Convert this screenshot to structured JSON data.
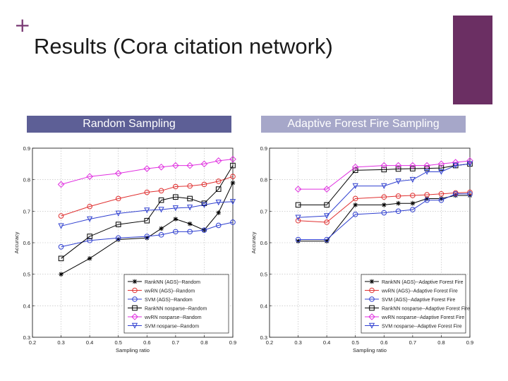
{
  "slide": {
    "plus": "+",
    "title": "Results (Cora citation network)",
    "accent_color": "#6b2f63",
    "left_label": "Random Sampling",
    "right_label": "Adaptive Forest Fire Sampling"
  },
  "chart_data": [
    {
      "type": "line",
      "xlabel": "Sampling ratio",
      "ylabel": "Accuracy",
      "xlim": [
        0.2,
        0.9
      ],
      "ylim": [
        0.3,
        0.9
      ],
      "xticks": [
        "0.2",
        "0.3",
        "0.4",
        "0.5",
        "0.6",
        "0.7",
        "0.8",
        "0.9"
      ],
      "yticks": [
        "0.3",
        "0.4",
        "0.5",
        "0.6",
        "0.7",
        "0.8",
        "0.9"
      ],
      "legend": "bottom-right",
      "x": [
        0.3,
        0.4,
        0.5,
        0.6,
        0.65,
        0.7,
        0.75,
        0.8,
        0.85,
        0.9
      ],
      "series": [
        {
          "name": "RankNN (AGS)--Random",
          "color": "#000000",
          "marker": "star",
          "values": [
            0.5,
            0.55,
            0.61,
            0.615,
            0.645,
            0.675,
            0.66,
            0.64,
            0.695,
            0.79
          ]
        },
        {
          "name": "wvRN (AGS)--Random",
          "color": "#e03030",
          "marker": "circle",
          "values": [
            0.685,
            0.715,
            0.74,
            0.76,
            0.765,
            0.778,
            0.78,
            0.785,
            0.795,
            0.81
          ]
        },
        {
          "name": "SVM (AGS)--Random",
          "color": "#3040d0",
          "marker": "circle",
          "values": [
            0.587,
            0.607,
            0.615,
            0.62,
            0.625,
            0.635,
            0.635,
            0.64,
            0.655,
            0.665
          ]
        },
        {
          "name": "RankNN nosparse--Random",
          "color": "#000000",
          "marker": "square",
          "values": [
            0.55,
            0.62,
            0.658,
            0.67,
            0.735,
            0.745,
            0.74,
            0.725,
            0.77,
            0.845
          ]
        },
        {
          "name": "wvRN nosparse--Random",
          "color": "#e030e0",
          "marker": "diamond",
          "values": [
            0.785,
            0.81,
            0.82,
            0.835,
            0.84,
            0.845,
            0.845,
            0.85,
            0.86,
            0.865
          ]
        },
        {
          "name": "SVM nosparse--Random",
          "color": "#3040d0",
          "marker": "triangle-down",
          "values": [
            0.653,
            0.675,
            0.693,
            0.703,
            0.705,
            0.71,
            0.712,
            0.72,
            0.728,
            0.73
          ]
        }
      ]
    },
    {
      "type": "line",
      "xlabel": "Sampling ratio",
      "ylabel": "Accuracy",
      "xlim": [
        0.2,
        0.9
      ],
      "ylim": [
        0.3,
        0.9
      ],
      "xticks": [
        "0.2",
        "0.3",
        "0.4",
        "0.5",
        "0.6",
        "0.7",
        "0.8",
        "0.9"
      ],
      "yticks": [
        "0.3",
        "0.4",
        "0.5",
        "0.6",
        "0.7",
        "0.8",
        "0.9"
      ],
      "legend": "bottom-right",
      "x": [
        0.3,
        0.4,
        0.5,
        0.6,
        0.65,
        0.7,
        0.75,
        0.8,
        0.85,
        0.9
      ],
      "series": [
        {
          "name": "RankNN (AGS)--Adaptive Forest Fire",
          "color": "#000000",
          "marker": "star",
          "values": [
            0.605,
            0.605,
            0.72,
            0.72,
            0.725,
            0.725,
            0.74,
            0.74,
            0.75,
            0.75
          ]
        },
        {
          "name": "wvRN (AGS)--Adaptive Forest Fire",
          "color": "#e03030",
          "marker": "circle",
          "values": [
            0.67,
            0.665,
            0.74,
            0.745,
            0.748,
            0.75,
            0.752,
            0.755,
            0.758,
            0.76
          ]
        },
        {
          "name": "SVM (AGS)--Adaptive Forest Fire",
          "color": "#3040d0",
          "marker": "circle",
          "values": [
            0.61,
            0.61,
            0.69,
            0.695,
            0.7,
            0.705,
            0.735,
            0.735,
            0.755,
            0.755
          ]
        },
        {
          "name": "RankNN nosparse--Adaptive Forest Fire",
          "color": "#000000",
          "marker": "square",
          "values": [
            0.72,
            0.72,
            0.83,
            0.832,
            0.834,
            0.835,
            0.836,
            0.837,
            0.845,
            0.85
          ]
        },
        {
          "name": "wvRN nosparse--Adaptive Forest Fire",
          "color": "#e030e0",
          "marker": "diamond",
          "values": [
            0.77,
            0.77,
            0.84,
            0.845,
            0.845,
            0.845,
            0.845,
            0.85,
            0.855,
            0.86
          ]
        },
        {
          "name": "SVM nosparse--Adaptive Forest Fire",
          "color": "#3040d0",
          "marker": "triangle-down",
          "values": [
            0.68,
            0.685,
            0.78,
            0.78,
            0.795,
            0.8,
            0.825,
            0.825,
            0.845,
            0.85
          ]
        }
      ]
    }
  ]
}
